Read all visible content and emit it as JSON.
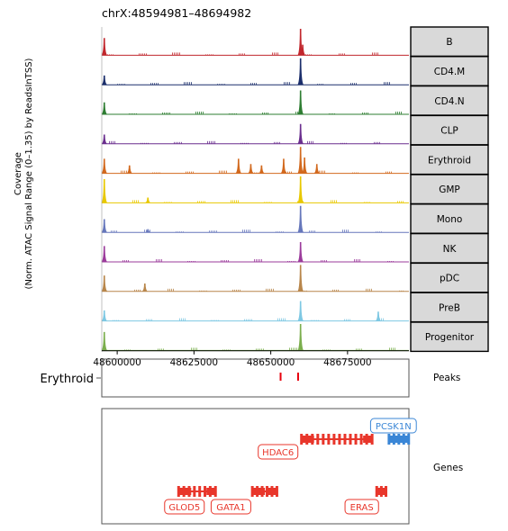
{
  "chart_data": {
    "type": "genome_tracks",
    "title": "chrX:48594981–48694982",
    "ylabel_line1": "Coverage",
    "ylabel_line2": "(Norm. ATAC Signal Range (0–1.35) by ReadsInTSS)",
    "xlim": [
      48594981,
      48694982
    ],
    "x_ticks": [
      48600000,
      48625000,
      48650000,
      48675000
    ],
    "x_tick_labels": [
      "48600000",
      "48625000",
      "48650000",
      "48675000"
    ],
    "tracks": [
      {
        "name": "B",
        "color": "#C1272D",
        "peaks": [
          [
            48595800,
            0.65
          ],
          [
            48659700,
            1.0
          ],
          [
            48660400,
            0.4
          ]
        ]
      },
      {
        "name": "CD4.M",
        "color": "#1B2E6B",
        "peaks": [
          [
            48595800,
            0.35
          ],
          [
            48659700,
            1.0
          ]
        ]
      },
      {
        "name": "CD4.N",
        "color": "#2E7D32",
        "peaks": [
          [
            48595800,
            0.45
          ],
          [
            48659700,
            0.9
          ]
        ]
      },
      {
        "name": "CLP",
        "color": "#6A2E8E",
        "peaks": [
          [
            48595800,
            0.35
          ],
          [
            48659700,
            0.75
          ]
        ]
      },
      {
        "name": "Erythroid",
        "color": "#D2691E",
        "peaks": [
          [
            48595800,
            0.55
          ],
          [
            48604000,
            0.3
          ],
          [
            48639500,
            0.55
          ],
          [
            48643500,
            0.35
          ],
          [
            48647000,
            0.3
          ],
          [
            48654200,
            0.55
          ],
          [
            48659700,
            1.0
          ],
          [
            48661000,
            0.6
          ],
          [
            48665000,
            0.35
          ]
        ]
      },
      {
        "name": "GMP",
        "color": "#E8C800",
        "peaks": [
          [
            48595800,
            0.9
          ],
          [
            48610000,
            0.2
          ],
          [
            48659700,
            1.0
          ]
        ]
      },
      {
        "name": "Mono",
        "color": "#6677BB",
        "peaks": [
          [
            48595800,
            0.5
          ],
          [
            48610000,
            0.12
          ],
          [
            48659700,
            1.0
          ]
        ]
      },
      {
        "name": "NK",
        "color": "#9B3B9B",
        "peaks": [
          [
            48595800,
            0.6
          ],
          [
            48659700,
            0.75
          ]
        ]
      },
      {
        "name": "pDC",
        "color": "#B8864B",
        "peaks": [
          [
            48595800,
            0.6
          ],
          [
            48609000,
            0.3
          ],
          [
            48659700,
            1.0
          ]
        ]
      },
      {
        "name": "PreB",
        "color": "#7EC8E3",
        "peaks": [
          [
            48595800,
            0.4
          ],
          [
            48659700,
            0.75
          ],
          [
            48685000,
            0.35
          ]
        ]
      },
      {
        "name": "Progenitor",
        "color": "#7BAE4D",
        "peaks": [
          [
            48595800,
            0.7
          ],
          [
            48659700,
            1.0
          ]
        ]
      }
    ],
    "peaks_track": {
      "row_label": "Erythroid",
      "side_label": "Peaks",
      "color": "#E8000D",
      "positions": [
        48653200,
        48658900
      ]
    },
    "genes_track": {
      "side_label": "Genes",
      "genes": [
        {
          "name": "GLOD5",
          "start": 48620000,
          "end": 48632000,
          "strand": "-",
          "color": "#E8362B",
          "row": 3
        },
        {
          "name": "GATA1",
          "start": 48644000,
          "end": 48652000,
          "strand": "-",
          "color": "#E8362B",
          "row": 3
        },
        {
          "name": "HDAC6",
          "start": 48660000,
          "end": 48683000,
          "strand": "-",
          "color": "#E8362B",
          "row": 1
        },
        {
          "name": "ERAS",
          "start": 48684500,
          "end": 48687500,
          "strand": "-",
          "color": "#E8362B",
          "row": 3
        },
        {
          "name": "PCSK1N",
          "start": 48688500,
          "end": 48694900,
          "strand": "+",
          "color": "#3A86D6",
          "row": 0
        }
      ]
    }
  }
}
